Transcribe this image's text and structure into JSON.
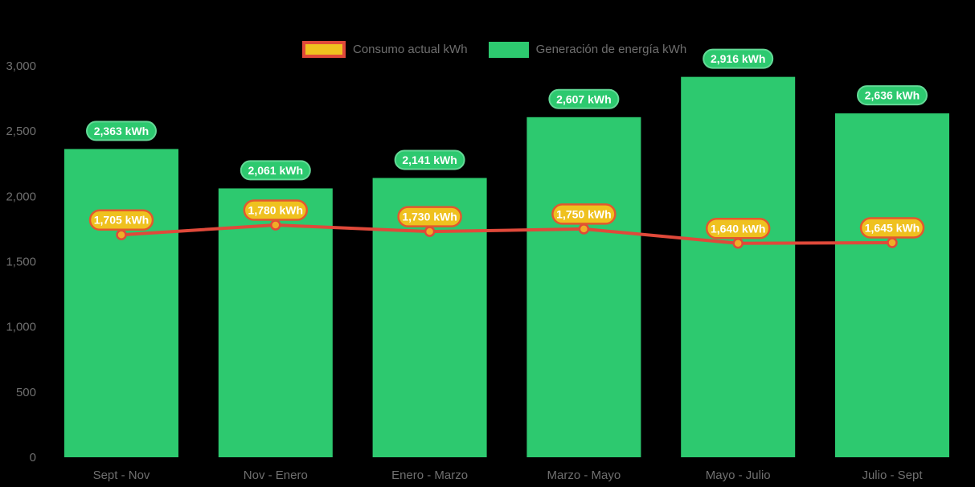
{
  "legend": {
    "consumo_label": "Consumo actual kWh",
    "generacion_label": "Generación de energía kWh"
  },
  "colors": {
    "background": "#000000",
    "bar_green": "#2dc96f",
    "bar_badge_border": "#63d996",
    "line_red": "#e0493a",
    "point_gold": "#f0ad27",
    "gold_badge_fill": "#efc11f",
    "gold_badge_border": "#e2582f",
    "axis_text": "#6f6f6f",
    "badge_text": "#ffffff"
  },
  "chart_data": {
    "type": "bar",
    "title": "",
    "xlabel": "",
    "ylabel": "",
    "ylim": [
      0,
      3000
    ],
    "grid": false,
    "legend_position": "top",
    "categories": [
      "Sept - Nov",
      "Nov - Enero",
      "Enero - Marzo",
      "Marzo - Mayo",
      "Mayo - Julio",
      "Julio - Sept"
    ],
    "yticks": {
      "values": [
        0,
        500,
        1000,
        1500,
        2000,
        2500,
        3000
      ],
      "labels": [
        "0",
        "500",
        "1,000",
        "1,500",
        "2,000",
        "2,500",
        "3,000"
      ]
    },
    "series": [
      {
        "name": "Generación de energía kWh",
        "type": "bar",
        "color": "#2dc96f",
        "values": [
          2363,
          2061,
          2141,
          2607,
          2916,
          2636
        ],
        "labels": [
          "2,363 kWh",
          "2,061 kWh",
          "2,141 kWh",
          "2,607 kWh",
          "2,916 kWh",
          "2,636 kWh"
        ]
      },
      {
        "name": "Consumo actual kWh",
        "type": "line",
        "color": "#e0493a",
        "point_color": "#f0ad27",
        "values": [
          1705,
          1780,
          1730,
          1750,
          1640,
          1645
        ],
        "labels": [
          "1,705 kWh",
          "1,780 kWh",
          "1,730 kWh",
          "1,750 kWh",
          "1,640 kWh",
          "1,645 kWh"
        ]
      }
    ]
  }
}
